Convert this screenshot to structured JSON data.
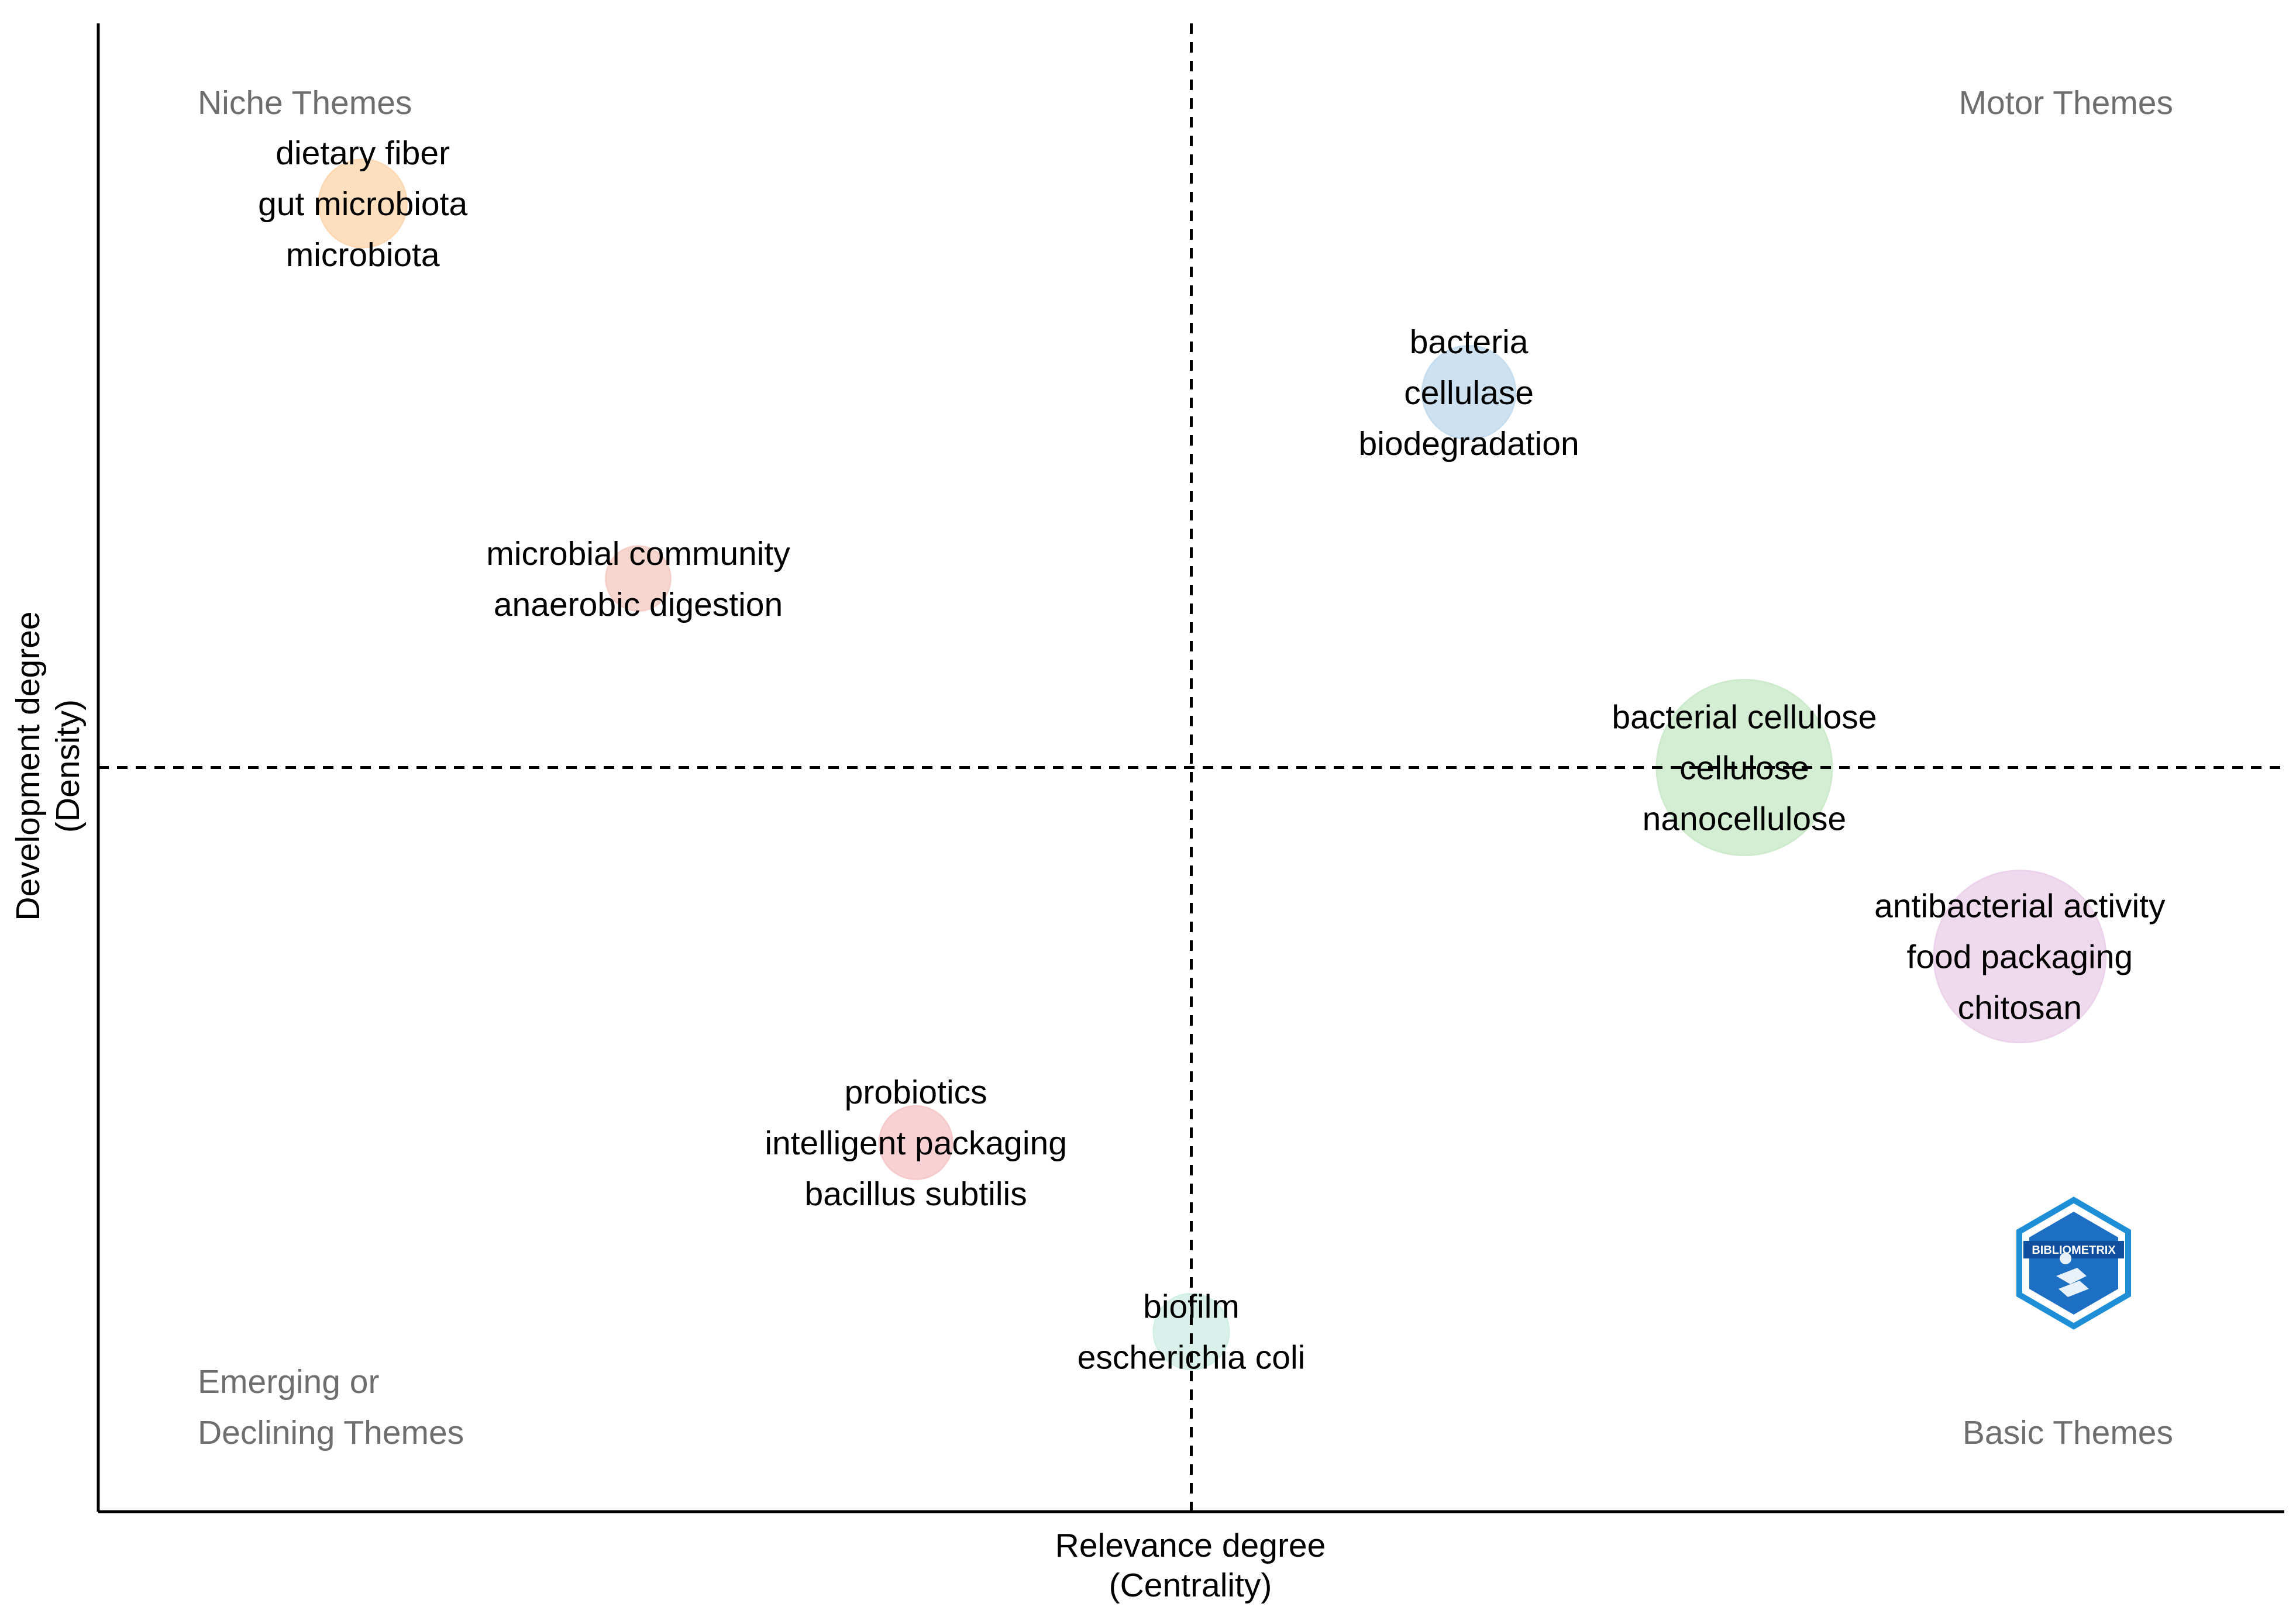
{
  "chart_data": {
    "type": "scatter",
    "subtype": "thematic-map",
    "title": "",
    "xlabel": "Relevance degree",
    "xlabel_sub": "(Centrality)",
    "ylabel": "Development degree",
    "ylabel_sub": "(Density)",
    "xlim": [
      0,
      1
    ],
    "ylim": [
      0,
      1
    ],
    "x_divider": 0.5,
    "y_divider": 0.5,
    "grid": false,
    "quadrants": {
      "top_left": "Niche Themes",
      "top_right": "Motor Themes",
      "bottom_left": [
        "Emerging or",
        "Declining Themes"
      ],
      "bottom_right": "Basic Themes"
    },
    "clusters": [
      {
        "name": "cluster-dietary-fiber",
        "x": 0.121,
        "y": 0.879,
        "size": 0.15,
        "color": "#fcd9b4",
        "labels": [
          "dietary fiber",
          "gut microbiota",
          "microbiota"
        ]
      },
      {
        "name": "cluster-bacteria",
        "x": 0.627,
        "y": 0.752,
        "size": 0.18,
        "color": "#c6dcef",
        "labels": [
          "bacteria",
          "cellulase",
          "biodegradation"
        ]
      },
      {
        "name": "cluster-microbial-community",
        "x": 0.247,
        "y": 0.627,
        "size": 0.05,
        "color": "#f5cfc7",
        "labels": [
          "microbial community",
          "anaerobic digestion"
        ]
      },
      {
        "name": "cluster-bacterial-cellulose",
        "x": 0.753,
        "y": 0.5,
        "size": 1.0,
        "color": "#cdebcc",
        "labels": [
          "bacterial cellulose",
          "cellulose",
          "nanocellulose"
        ]
      },
      {
        "name": "cluster-antibacterial-activity",
        "x": 0.879,
        "y": 0.373,
        "size": 0.95,
        "color": "#ecd2ea",
        "labels": [
          "antibacterial activity",
          "food packaging",
          "chitosan"
        ]
      },
      {
        "name": "cluster-probiotics",
        "x": 0.374,
        "y": 0.248,
        "size": 0.08,
        "color": "#f6c9cb",
        "labels": [
          "probiotics",
          "intelligent packaging",
          "bacillus subtilis"
        ]
      },
      {
        "name": "cluster-biofilm",
        "x": 0.5,
        "y": 0.121,
        "size": 0.09,
        "color": "#d2efe6",
        "labels": [
          "biofilm",
          "escherichia coli"
        ]
      }
    ],
    "logo_text": "BIBLIOMETRIX"
  }
}
